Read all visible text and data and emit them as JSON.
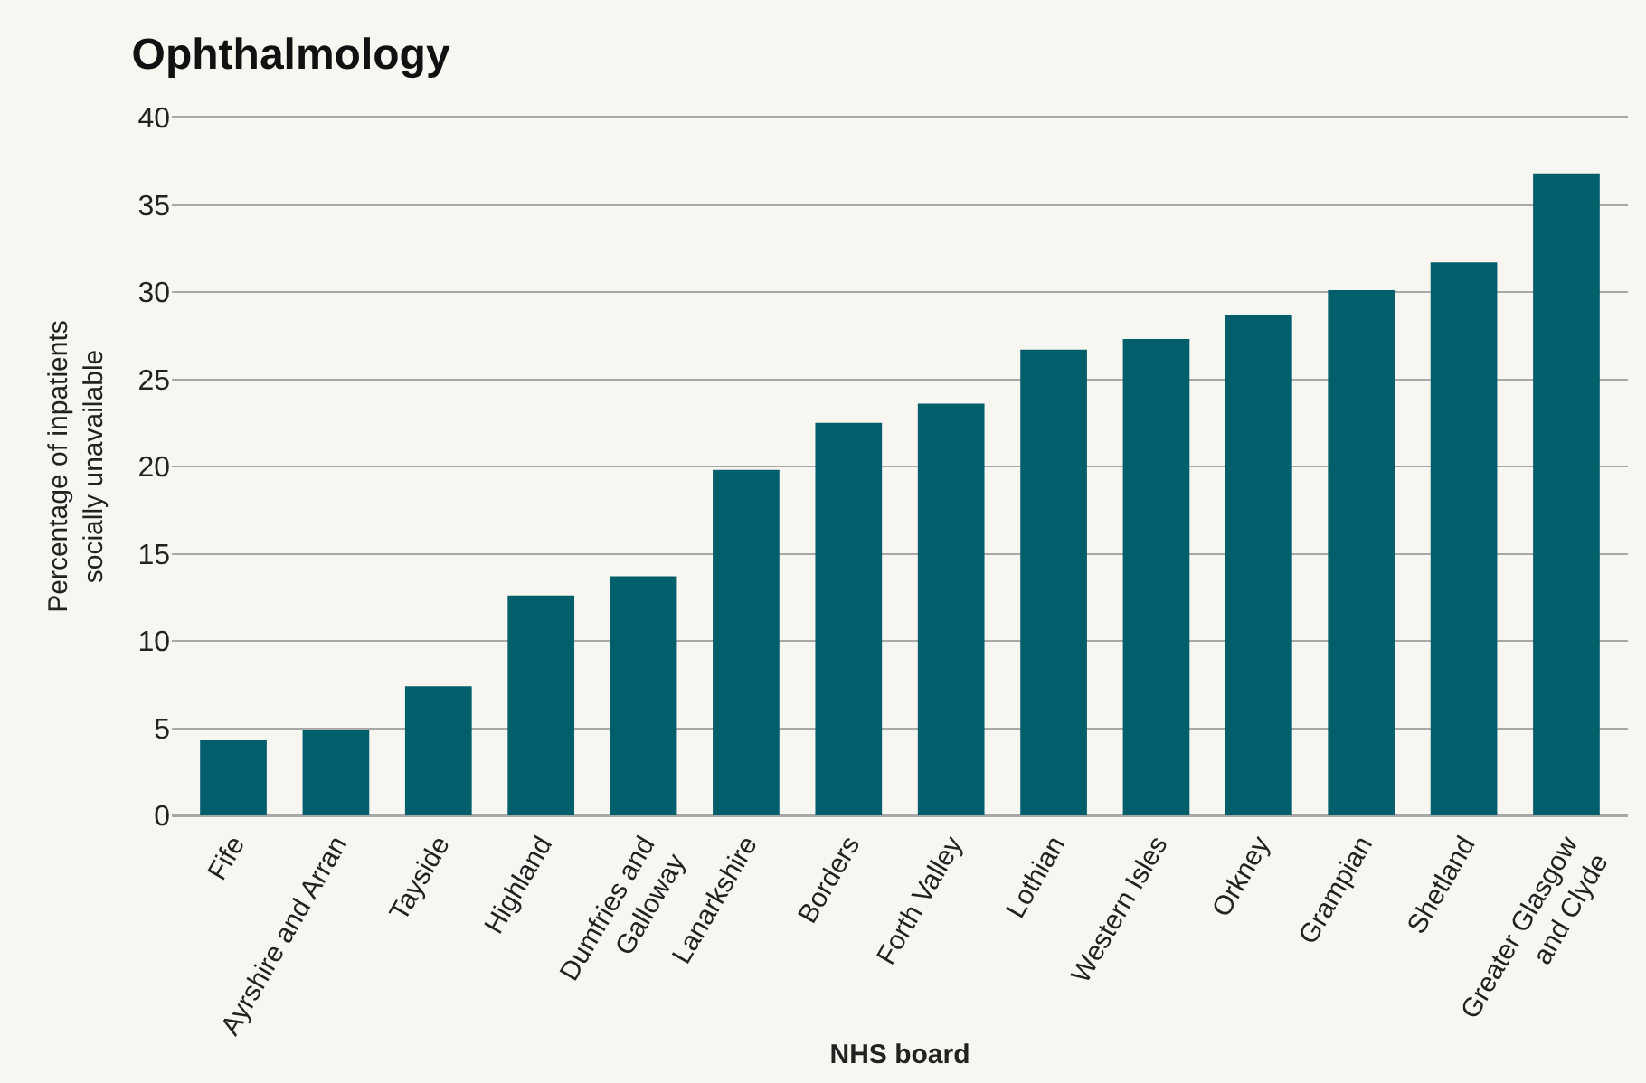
{
  "chart_data": {
    "type": "bar",
    "title": "Ophthalmology",
    "xlabel": "NHS board",
    "ylabel": "Percentage of inpatients\nsocially unavailable",
    "categories": [
      "Fife",
      "Ayrshire and Arran",
      "Tayside",
      "Highland",
      "Dumfries and\nGalloway",
      "Lanarkshire",
      "Borders",
      "Forth Valley",
      "Lothian",
      "Western Isles",
      "Orkney",
      "Grampian",
      "Shetland",
      "Greater Glasgow\nand Clyde"
    ],
    "values": [
      4.3,
      4.9,
      7.4,
      12.6,
      13.7,
      19.8,
      22.5,
      23.6,
      26.7,
      27.3,
      28.7,
      30.1,
      31.7,
      36.8
    ],
    "color": "#005f6b",
    "ylim": [
      0,
      40
    ],
    "yticks": [
      0,
      5,
      10,
      15,
      20,
      25,
      30,
      35,
      40
    ],
    "grid": "y"
  }
}
